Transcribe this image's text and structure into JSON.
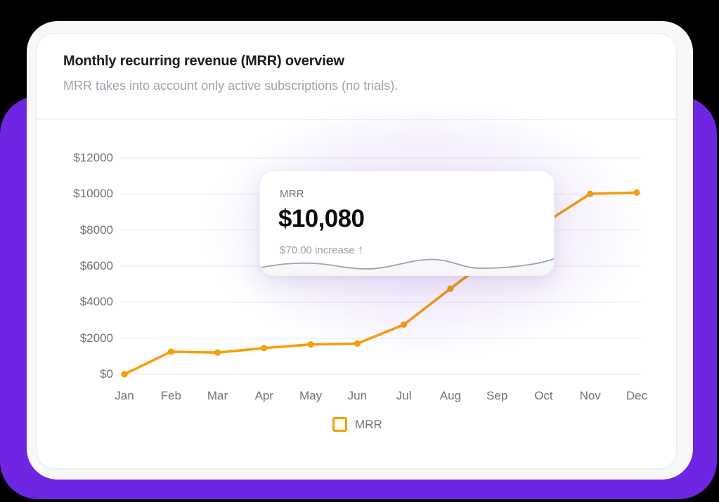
{
  "page": {
    "background_color": "#000000",
    "backdrop_color": "#6F26E3"
  },
  "card": {
    "title": "Monthly recurring revenue (MRR) overview",
    "subtitle": "MRR takes into account only active subscriptions (no trials)."
  },
  "tooltip": {
    "label": "MRR",
    "value": "$10,080",
    "delta": "$70.00 increase",
    "delta_arrow": "↑"
  },
  "legend": {
    "label": "MRR"
  },
  "chart_data": {
    "type": "line",
    "title": "Monthly recurring revenue (MRR) overview",
    "categories": [
      "Jan",
      "Feb",
      "Mar",
      "Apr",
      "May",
      "Jun",
      "Jul",
      "Aug",
      "Sep",
      "Oct",
      "Nov",
      "Dec"
    ],
    "series": [
      {
        "name": "MRR",
        "color": "#F59F0B",
        "values": [
          0,
          1250,
          1200,
          1450,
          1650,
          1700,
          2750,
          4750,
          6700,
          8350,
          10010,
          10080
        ]
      }
    ],
    "ylim": [
      0,
      12000
    ],
    "yticks": [
      0,
      2000,
      4000,
      6000,
      8000,
      10000,
      12000
    ],
    "ytick_prefix": "$",
    "xlabel": "",
    "ylabel": "",
    "grid": "horizontal",
    "gridline_color": "#ececf2",
    "legend_position": "bottom",
    "tooltip_point": {
      "month": "Dec",
      "value": 10080,
      "change": 70.0
    }
  }
}
